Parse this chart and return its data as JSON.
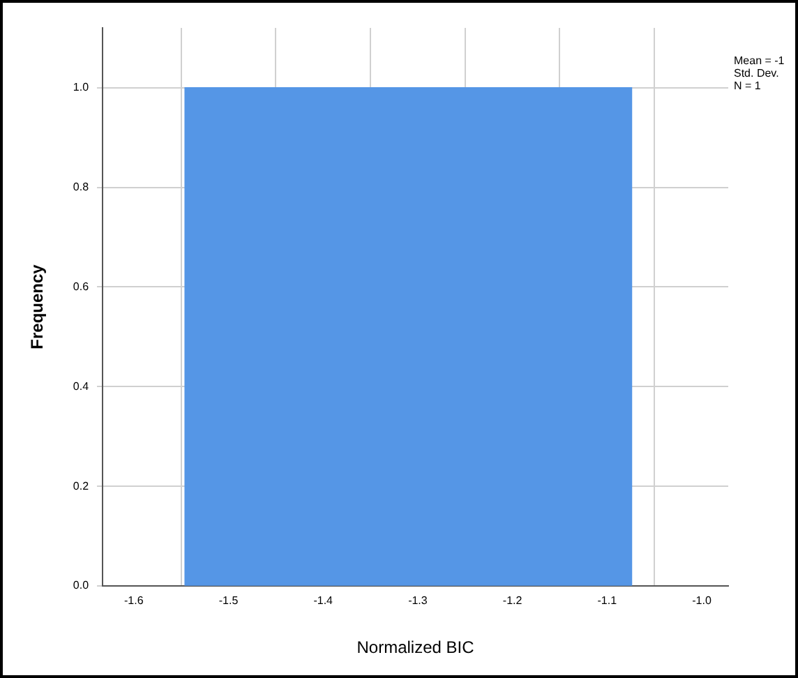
{
  "chart_data": {
    "type": "histogram",
    "xlabel": "Normalized BIC",
    "ylabel": "Frequency",
    "bins": [
      -1.546,
      -1.074
    ],
    "values": [
      1
    ],
    "color": "#5596e6",
    "xlim": [
      -1.633,
      -0.972
    ],
    "ylim": [
      0,
      1.12
    ],
    "xticks": [
      {
        "value": -1.6,
        "label": "-1.6"
      },
      {
        "value": -1.5,
        "label": "-1.5"
      },
      {
        "value": -1.4,
        "label": "-1.4"
      },
      {
        "value": -1.3,
        "label": "-1.3"
      },
      {
        "value": -1.2,
        "label": "-1.2"
      },
      {
        "value": -1.1,
        "label": "-1.1"
      },
      {
        "value": -1.0,
        "label": "-1.0"
      }
    ],
    "yticks": [
      {
        "value": 0,
        "label": "0.0"
      },
      {
        "value": 0.2,
        "label": "0.2"
      },
      {
        "value": 0.4,
        "label": "0.4"
      },
      {
        "value": 0.6,
        "label": "0.6"
      },
      {
        "value": 0.8,
        "label": "0.8"
      },
      {
        "value": 1.0,
        "label": "1.0"
      }
    ],
    "grid": true,
    "legend": false,
    "annotations": [
      "Mean = -1",
      "Std. Dev.",
      "N = 1"
    ]
  }
}
